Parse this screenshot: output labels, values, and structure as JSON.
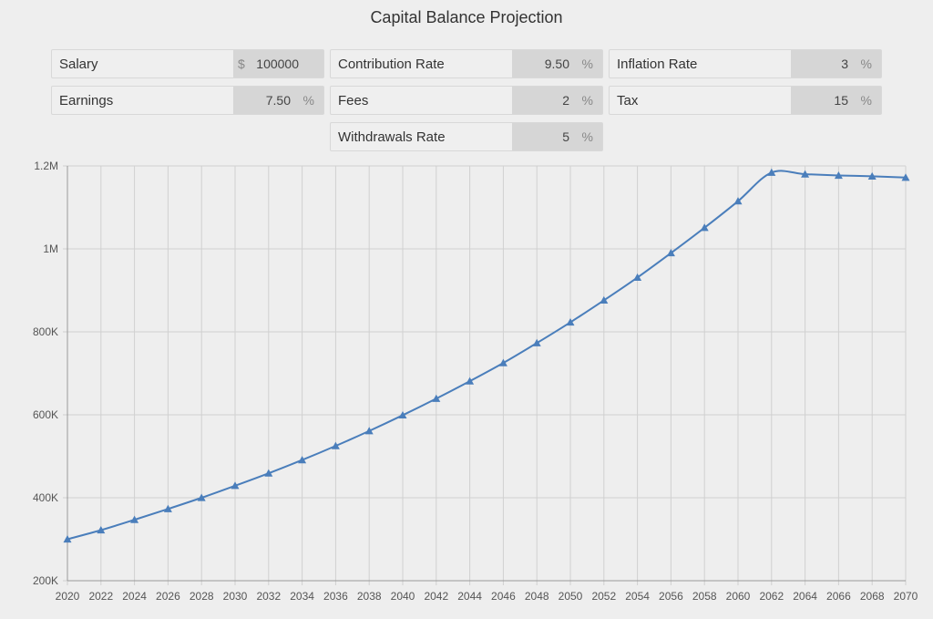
{
  "title": "Capital Balance Projection",
  "inputs": {
    "salary": {
      "label": "Salary",
      "currency": "$",
      "value": "100000"
    },
    "contribution_rate": {
      "label": "Contribution Rate",
      "value": "9.50",
      "unit": "%"
    },
    "inflation_rate": {
      "label": "Inflation Rate",
      "value": "3",
      "unit": "%"
    },
    "earnings": {
      "label": "Earnings",
      "value": "7.50",
      "unit": "%"
    },
    "fees": {
      "label": "Fees",
      "value": "2",
      "unit": "%"
    },
    "tax": {
      "label": "Tax",
      "value": "15",
      "unit": "%"
    },
    "withdrawals_rate": {
      "label": "Withdrawals Rate",
      "value": "5",
      "unit": "%"
    }
  },
  "colors": {
    "series": "#4a7ebb",
    "grid": "#d0d0d0",
    "input_bg": "#d6d6d6"
  },
  "chart_data": {
    "type": "line",
    "x": [
      2020,
      2022,
      2024,
      2026,
      2028,
      2030,
      2032,
      2034,
      2036,
      2038,
      2040,
      2042,
      2044,
      2046,
      2048,
      2050,
      2052,
      2054,
      2056,
      2058,
      2060,
      2062,
      2064,
      2066,
      2068,
      2070
    ],
    "series": [
      {
        "values": [
          300000,
          322000,
          347000,
          373000,
          400000,
          429000,
          459000,
          491000,
          525000,
          561000,
          599000,
          639000,
          681000,
          725000,
          773000,
          823000,
          876000,
          931000,
          990000,
          1051000,
          1115000,
          1184000,
          1180000,
          1177000,
          1175000,
          1172000
        ],
        "marker": "triangle"
      }
    ],
    "xlim": [
      2020,
      2070
    ],
    "ylim": [
      200000,
      1200000
    ],
    "xticks": [
      "2020",
      "2022",
      "2024",
      "2026",
      "2028",
      "2030",
      "2032",
      "2034",
      "2036",
      "2038",
      "2040",
      "2042",
      "2044",
      "2046",
      "2048",
      "2050",
      "2052",
      "2054",
      "2056",
      "2058",
      "2060",
      "2062",
      "2064",
      "2066",
      "2068",
      "2070"
    ],
    "yticks": [
      {
        "value": 200000,
        "label": "200K"
      },
      {
        "value": 400000,
        "label": "400K"
      },
      {
        "value": 600000,
        "label": "600K"
      },
      {
        "value": 800000,
        "label": "800K"
      },
      {
        "value": 1000000,
        "label": "1M"
      },
      {
        "value": 1200000,
        "label": "1.2M"
      }
    ],
    "grid": true,
    "title": "Capital Balance Projection",
    "xlabel": "",
    "ylabel": ""
  }
}
